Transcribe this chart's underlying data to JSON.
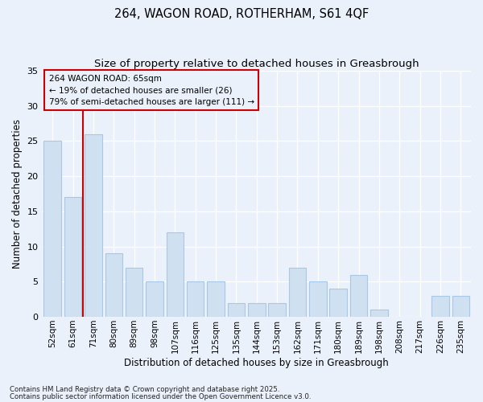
{
  "title1": "264, WAGON ROAD, ROTHERHAM, S61 4QF",
  "title2": "Size of property relative to detached houses in Greasbrough",
  "xlabel": "Distribution of detached houses by size in Greasbrough",
  "ylabel": "Number of detached properties",
  "categories": [
    "52sqm",
    "61sqm",
    "71sqm",
    "80sqm",
    "89sqm",
    "98sqm",
    "107sqm",
    "116sqm",
    "125sqm",
    "135sqm",
    "144sqm",
    "153sqm",
    "162sqm",
    "171sqm",
    "180sqm",
    "189sqm",
    "198sqm",
    "208sqm",
    "217sqm",
    "226sqm",
    "235sqm"
  ],
  "values": [
    25,
    17,
    26,
    9,
    7,
    5,
    12,
    5,
    5,
    2,
    2,
    2,
    7,
    5,
    4,
    6,
    1,
    0,
    0,
    3,
    3
  ],
  "bar_color": "#cfe0f0",
  "bar_edge_color": "#a8c8e8",
  "background_color": "#eaf1fb",
  "grid_color": "#ffffff",
  "vline_color": "#cc0000",
  "vline_pos": 1.5,
  "annotation_text": "264 WAGON ROAD: 65sqm\n← 19% of detached houses are smaller (26)\n79% of semi-detached houses are larger (111) →",
  "annotation_box_edge": "#cc0000",
  "ylim": [
    0,
    35
  ],
  "yticks": [
    0,
    5,
    10,
    15,
    20,
    25,
    30,
    35
  ],
  "footnote1": "Contains HM Land Registry data © Crown copyright and database right 2025.",
  "footnote2": "Contains public sector information licensed under the Open Government Licence v3.0."
}
